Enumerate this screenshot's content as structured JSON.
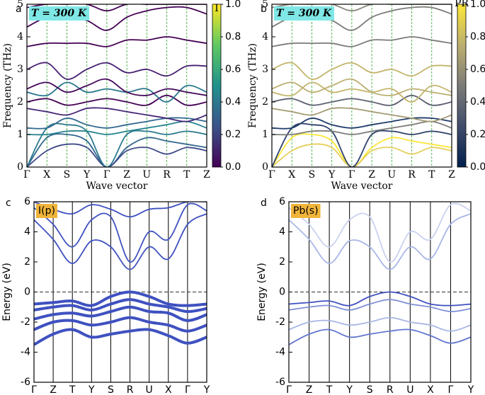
{
  "chart_data": [
    {
      "type": "line",
      "label": "a",
      "annotation": "T = 300 K",
      "xlabel": "Wave vector",
      "ylabel": "Frequency (THz)",
      "categories": [
        "Γ",
        "X",
        "S",
        "Y",
        "Γ",
        "Z",
        "U",
        "R",
        "T",
        "Z"
      ],
      "ylim": [
        0,
        5
      ],
      "yticks": [
        0,
        1,
        2,
        3,
        4,
        5
      ],
      "colorbar": {
        "title": "I",
        "lim": [
          0,
          1
        ],
        "colors": [
          "#440154",
          "#3b528b",
          "#21918c",
          "#5ec962",
          "#fde725"
        ],
        "ticks": [
          {
            "value": 0,
            "label": "0.0"
          },
          {
            "value": 0.2,
            "label": "0.2"
          },
          {
            "value": 0.4,
            "label": "0.4"
          },
          {
            "value": 0.6,
            "label": "0.6"
          },
          {
            "value": 0.8,
            "label": "0.8"
          },
          {
            "value": 1,
            "label": "1.0"
          }
        ]
      },
      "series": [
        {
          "color": "#31688e",
          "values": [
            0,
            0.9,
            1.0,
            0.8,
            0,
            0.6,
            0.9,
            0.8,
            0.7,
            0.6
          ]
        },
        {
          "color": "#3e4a89",
          "values": [
            0,
            0.5,
            0.7,
            0.6,
            0,
            0.5,
            0.6,
            0.4,
            0.6,
            0.5
          ]
        },
        {
          "color": "#2a788e",
          "values": [
            0,
            1.2,
            1.3,
            1.1,
            0,
            1.0,
            1.1,
            1.0,
            1.1,
            1.0
          ]
        },
        {
          "color": "#26828e",
          "values": [
            1.0,
            1.0,
            1.1,
            1.1,
            1.0,
            1.1,
            1.2,
            1.3,
            1.4,
            1.2
          ]
        },
        {
          "color": "#31688e",
          "values": [
            1.2,
            1.2,
            1.5,
            1.3,
            1.2,
            1.3,
            1.4,
            1.5,
            1.5,
            1.4
          ]
        },
        {
          "color": "#482878",
          "values": [
            1.8,
            1.7,
            1.6,
            1.8,
            1.8,
            1.7,
            1.6,
            1.5,
            1.4,
            1.6
          ]
        },
        {
          "color": "#440154",
          "values": [
            2.0,
            2.1,
            1.9,
            2.0,
            2.1,
            2.0,
            1.9,
            2.2,
            1.9,
            2.0
          ]
        },
        {
          "color": "#2a788e",
          "values": [
            2.3,
            2.2,
            2.6,
            2.3,
            2.4,
            2.3,
            2.4,
            2.0,
            2.5,
            2.3
          ]
        },
        {
          "color": "#46085c",
          "values": [
            2.4,
            2.6,
            2.3,
            2.5,
            2.7,
            2.3,
            2.2,
            2.4,
            2.3,
            2.2
          ]
        },
        {
          "color": "#482173",
          "values": [
            3.0,
            3.2,
            2.7,
            3.0,
            3.2,
            2.9,
            3.0,
            2.8,
            3.1,
            3.1
          ]
        },
        {
          "color": "#440154",
          "values": [
            3.7,
            3.8,
            3.8,
            3.8,
            3.7,
            3.9,
            3.9,
            4.0,
            3.9,
            3.8
          ]
        },
        {
          "color": "#440154",
          "values": [
            4.3,
            4.6,
            4.6,
            4.5,
            4.2,
            4.6,
            4.8,
            4.9,
            4.9,
            4.7
          ]
        },
        {
          "color": "#440154",
          "values": [
            4.9,
            5.0,
            5.0,
            5.0,
            4.8,
            5.0,
            5.0,
            5.0,
            5.0,
            5.0
          ]
        }
      ]
    },
    {
      "type": "line",
      "label": "b",
      "annotation": "T = 300 K",
      "xlabel": "Wave vector",
      "ylabel": "Frequency (THz)",
      "categories": [
        "Γ",
        "X",
        "S",
        "Y",
        "Γ",
        "Z",
        "U",
        "R",
        "T",
        "Z"
      ],
      "ylim": [
        0,
        5
      ],
      "yticks": [
        0,
        1,
        2,
        3,
        4,
        5
      ],
      "colorbar": {
        "title": "PR",
        "lim": [
          0,
          1
        ],
        "colors": [
          "#00204c",
          "#414d6b",
          "#7c7b78",
          "#bcaf6f",
          "#fde737"
        ],
        "ticks": [
          {
            "value": 0,
            "label": "0.0"
          },
          {
            "value": 0.2,
            "label": "0.2"
          },
          {
            "value": 0.4,
            "label": "0.4"
          },
          {
            "value": 0.6,
            "label": "0.6"
          },
          {
            "value": 0.8,
            "label": "0.8"
          },
          {
            "value": 1,
            "label": "1.0"
          }
        ]
      },
      "series": [
        {
          "color": "#fde737",
          "values": [
            0,
            0.9,
            1.0,
            0.8,
            0,
            0.6,
            0.9,
            0.8,
            0.7,
            0.6
          ]
        },
        {
          "color": "#e4cf5b",
          "values": [
            0,
            0.5,
            0.7,
            0.6,
            0,
            0.5,
            0.6,
            0.4,
            0.6,
            0.5
          ]
        },
        {
          "color": "#2d3f6b",
          "values": [
            0,
            1.2,
            1.3,
            1.1,
            0,
            1.0,
            1.1,
            1.0,
            1.1,
            1.0
          ]
        },
        {
          "color": "#7c7b78",
          "values": [
            1.0,
            1.0,
            1.1,
            1.1,
            1.0,
            1.1,
            1.2,
            1.3,
            1.4,
            1.2
          ]
        },
        {
          "color": "#1f3a6b",
          "values": [
            1.2,
            1.2,
            1.5,
            1.3,
            1.2,
            1.3,
            1.4,
            1.5,
            1.5,
            1.4
          ]
        },
        {
          "color": "#a59c74",
          "values": [
            1.8,
            1.7,
            1.6,
            1.8,
            1.8,
            1.7,
            1.6,
            1.5,
            1.4,
            1.6
          ]
        },
        {
          "color": "#5b6070",
          "values": [
            2.0,
            2.1,
            1.9,
            2.0,
            2.1,
            2.0,
            1.9,
            2.2,
            1.9,
            2.0
          ]
        },
        {
          "color": "#c4b56c",
          "values": [
            2.3,
            2.2,
            2.6,
            2.3,
            2.4,
            2.3,
            2.4,
            2.0,
            2.5,
            2.3
          ]
        },
        {
          "color": "#bcaf6f",
          "values": [
            2.4,
            2.6,
            2.3,
            2.5,
            2.7,
            2.3,
            2.2,
            2.4,
            2.3,
            2.2
          ]
        },
        {
          "color": "#c4b56c",
          "values": [
            3.0,
            3.2,
            2.7,
            3.0,
            3.2,
            2.9,
            3.0,
            2.8,
            3.1,
            3.1
          ]
        },
        {
          "color": "#7c7b78",
          "values": [
            3.7,
            3.8,
            3.8,
            3.8,
            3.7,
            3.9,
            3.9,
            4.0,
            3.9,
            3.8
          ]
        },
        {
          "color": "#7c7b78",
          "values": [
            4.3,
            4.6,
            4.6,
            4.5,
            4.2,
            4.6,
            4.8,
            4.9,
            4.9,
            4.7
          ]
        },
        {
          "color": "#8a877a",
          "values": [
            4.9,
            5.0,
            5.0,
            5.0,
            4.8,
            5.0,
            5.0,
            5.0,
            5.0,
            5.0
          ]
        }
      ]
    },
    {
      "type": "line",
      "label": "c",
      "annotation": "I(p)",
      "ylabel": "Energy (eV)",
      "categories": [
        "Γ",
        "Z",
        "T",
        "Y",
        "S",
        "R",
        "U",
        "X",
        "Γ",
        "Y"
      ],
      "ylim": [
        -6,
        6
      ],
      "yticks": [
        -6,
        -4,
        -2,
        0,
        2,
        4,
        6
      ],
      "hline": 0,
      "series": [
        {
          "color": "#3f51c0",
          "values": [
            4.8,
            3.5,
            1.9,
            3.4,
            3.0,
            1.5,
            3.0,
            2.2,
            4.5,
            5.2
          ]
        },
        {
          "color": "#3f51c0",
          "values": [
            5.6,
            4.5,
            3.0,
            4.8,
            5.0,
            2.0,
            4.0,
            3.5,
            5.8,
            5.4
          ]
        },
        {
          "color": "#3f51c0",
          "values": [
            6,
            5.5,
            5.2,
            5.8,
            5.5,
            5.0,
            5.5,
            5.6,
            6,
            6
          ]
        },
        {
          "color": "#3f51c0",
          "values": [
            -0.8,
            -0.7,
            -0.6,
            -0.9,
            -0.3,
            0.0,
            -0.3,
            -0.8,
            -0.9,
            -0.8
          ]
        },
        {
          "color": "#3f51c0",
          "values": [
            -1.2,
            -1.0,
            -0.9,
            -1.2,
            -0.8,
            -0.5,
            -0.8,
            -1.0,
            -1.3,
            -1.1
          ]
        },
        {
          "color": "#3f51c0",
          "values": [
            -1.8,
            -1.5,
            -1.4,
            -1.6,
            -1.3,
            -1.0,
            -1.3,
            -1.4,
            -1.9,
            -1.5
          ]
        },
        {
          "color": "#3f51c0",
          "values": [
            -2.5,
            -2.0,
            -1.9,
            -2.2,
            -2.0,
            -1.7,
            -2.0,
            -2.2,
            -2.6,
            -2.2
          ]
        },
        {
          "color": "#3f51c0",
          "values": [
            -3.5,
            -2.8,
            -2.5,
            -3.0,
            -2.8,
            -2.6,
            -2.5,
            -2.9,
            -3.4,
            -3.0
          ]
        }
      ]
    },
    {
      "type": "line",
      "label": "d",
      "annotation": "Pb(s)",
      "ylabel": "Energy (eV)",
      "categories": [
        "Γ",
        "Z",
        "T",
        "Y",
        "S",
        "R",
        "U",
        "X",
        "Γ",
        "Y"
      ],
      "ylim": [
        -6,
        6
      ],
      "yticks": [
        -6,
        -4,
        -2,
        0,
        2,
        4,
        6
      ],
      "hline": 0,
      "series": [
        {
          "color": "#a9b6e6",
          "values": [
            4.8,
            3.5,
            1.9,
            3.4,
            3.0,
            1.5,
            3.0,
            2.2,
            4.5,
            5.2
          ]
        },
        {
          "color": "#c9d1ef",
          "values": [
            5.6,
            4.5,
            3.0,
            4.8,
            5.0,
            2.0,
            4.0,
            3.5,
            5.8,
            5.4
          ]
        },
        {
          "color": "#3f51c0",
          "values": [
            -0.8,
            -0.7,
            -0.6,
            -0.9,
            -0.3,
            0.0,
            -0.3,
            -0.8,
            -0.9,
            -0.8
          ]
        },
        {
          "color": "#7d8ed6",
          "values": [
            -1.2,
            -1.0,
            -0.9,
            -1.2,
            -0.8,
            -0.5,
            -0.8,
            -1.0,
            -1.3,
            -1.1
          ]
        },
        {
          "color": "#a9b6e6",
          "values": [
            -2.5,
            -2.0,
            -1.9,
            -2.2,
            -2.0,
            -1.7,
            -2.0,
            -2.2,
            -2.6,
            -2.2
          ]
        },
        {
          "color": "#6477cf",
          "values": [
            -3.5,
            -2.8,
            -2.5,
            -3.0,
            -2.8,
            -2.6,
            -2.5,
            -2.9,
            -3.4,
            -3.0
          ]
        }
      ]
    }
  ]
}
